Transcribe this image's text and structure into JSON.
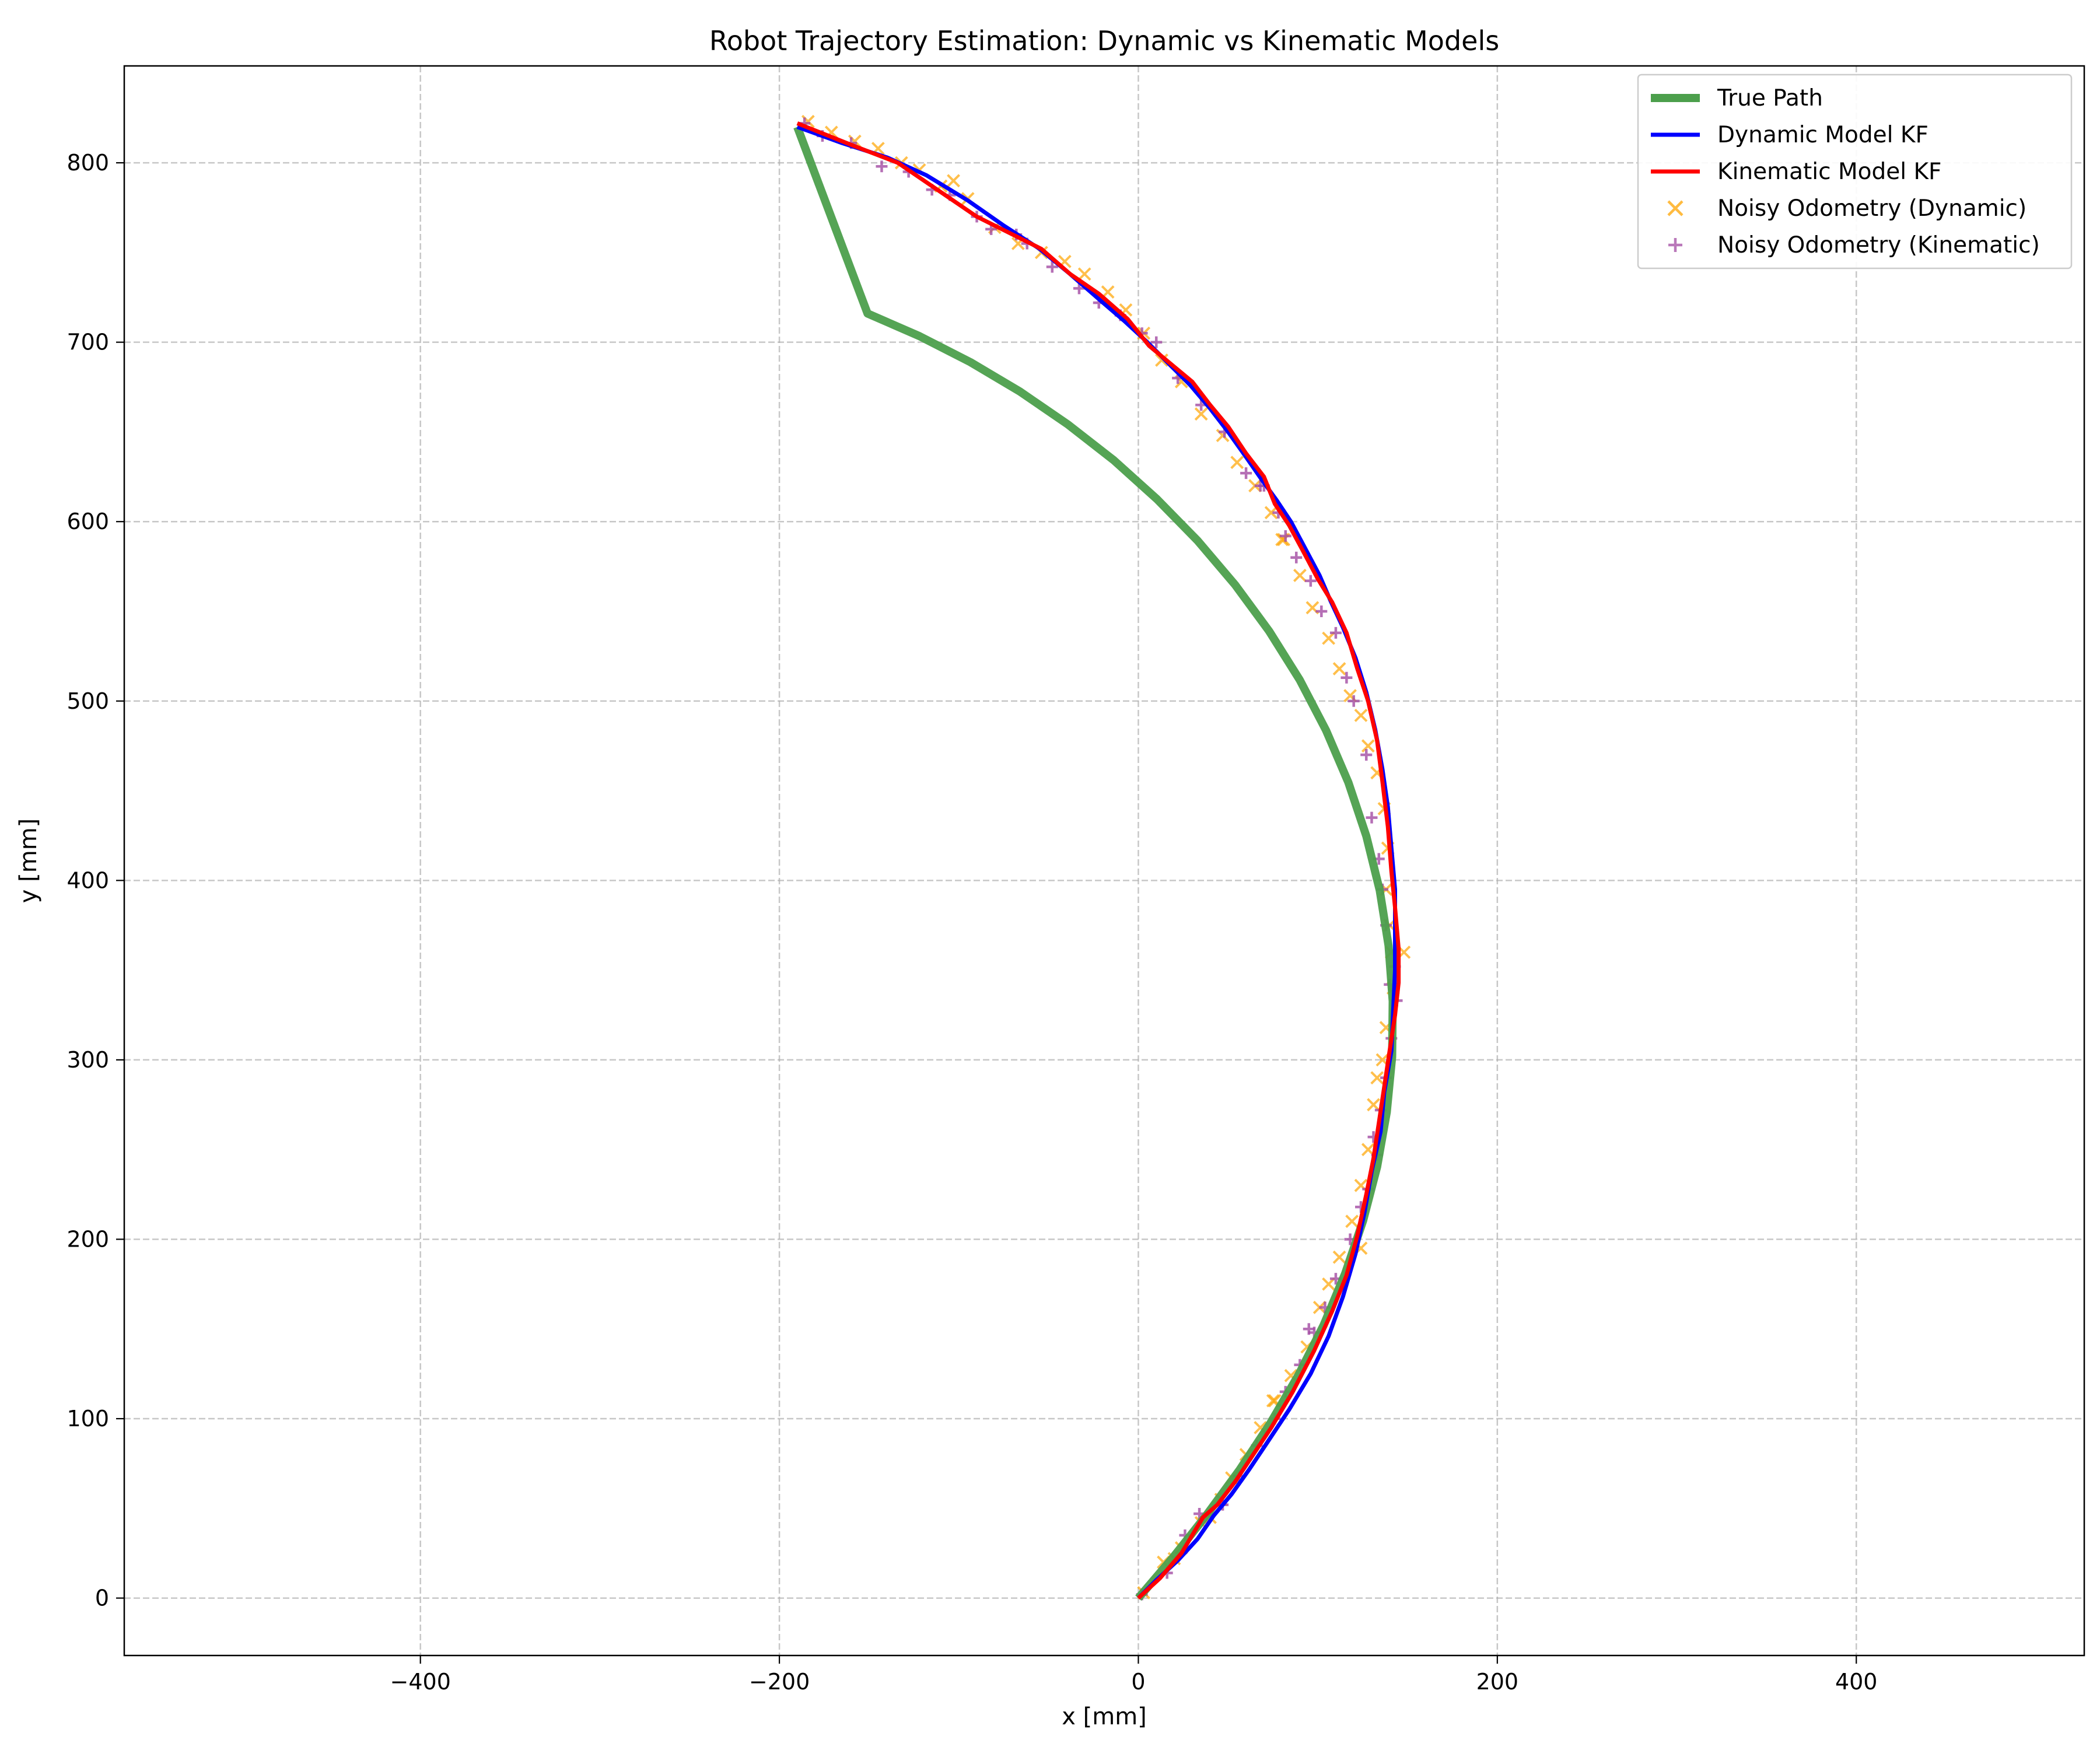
{
  "chart_data": {
    "type": "line",
    "title": "Robot Trajectory Estimation: Dynamic vs Kinematic Models",
    "xlabel": "x [mm]",
    "ylabel": "y [mm]",
    "xlim": [
      -565,
      527
    ],
    "ylim": [
      -32,
      854
    ],
    "xticks": [
      -400,
      -200,
      0,
      200,
      400
    ],
    "yticks": [
      0,
      100,
      200,
      300,
      400,
      500,
      600,
      700,
      800
    ],
    "grid": true,
    "legend_position": "top-right",
    "series": [
      {
        "name": "True Path",
        "kind": "line",
        "color": "#4c9f4c",
        "x": [
          0,
          19.4,
          38.3,
          56.4,
          73.5,
          89.2,
          103.2,
          115.2,
          125.2,
          133.0,
          138.4,
          141.4,
          141.7,
          139.4,
          134.5,
          127.0,
          117.0,
          104.6,
          89.9,
          72.9,
          53.9,
          33.0,
          10.3,
          -13.8,
          -39.3,
          -66.0,
          -93.6,
          -122.0,
          -150.9,
          -190.0
        ],
        "y": [
          0,
          22.8,
          46.7,
          71.5,
          97.4,
          124.3,
          152.1,
          180.8,
          210.3,
          240.3,
          270.8,
          301.6,
          332.6,
          363.6,
          394.4,
          424.8,
          454.6,
          483.6,
          511.8,
          538.9,
          564.8,
          589.4,
          612.6,
          634.3,
          654.2,
          672.5,
          688.9,
          703.4,
          716.0,
          820.0
        ]
      },
      {
        "name": "Dynamic Model KF",
        "kind": "line",
        "color": "#0000ff",
        "x": [
          0,
          10,
          22,
          33,
          42,
          52,
          62,
          72,
          84,
          96,
          106,
          114,
          121,
          126,
          130,
          135,
          137,
          141,
          142,
          143,
          143,
          143,
          141,
          139,
          136,
          132,
          127,
          121,
          114,
          107,
          101,
          93,
          85,
          77,
          69,
          60,
          50,
          40,
          29,
          18,
          5,
          -8,
          -22,
          -38,
          -55,
          -75,
          -95,
          -118,
          -140,
          -165,
          -190
        ],
        "y": [
          0,
          10,
          21,
          33,
          46,
          58,
          72,
          87,
          105,
          125,
          146,
          168,
          192,
          215,
          238,
          260,
          282,
          305,
          328,
          350,
          373,
          395,
          418,
          441,
          462,
          484,
          505,
          524,
          541,
          556,
          570,
          585,
          600,
          612,
          623,
          636,
          650,
          663,
          676,
          687,
          700,
          712,
          724,
          738,
          752,
          765,
          779,
          793,
          803,
          811,
          820
        ]
      },
      {
        "name": "Kinematic Model KF",
        "kind": "line",
        "color": "#ff0000",
        "x": [
          0,
          12,
          24,
          36,
          44,
          54,
          64,
          74,
          86,
          98,
          108,
          116,
          122,
          127,
          131,
          134,
          137,
          140,
          143,
          145,
          145,
          143,
          141,
          139,
          136,
          133,
          128,
          122,
          116,
          108,
          100,
          91,
          84,
          76,
          70,
          60,
          50,
          40,
          30,
          18,
          6,
          -6,
          -22,
          -38,
          -54,
          -70,
          -90,
          -112,
          -134,
          -160,
          -190
        ],
        "y": [
          0,
          11,
          25,
          45,
          52,
          65,
          80,
          95,
          115,
          138,
          160,
          180,
          202,
          225,
          245,
          265,
          285,
          305,
          325,
          343,
          362,
          385,
          405,
          430,
          455,
          478,
          500,
          518,
          538,
          555,
          568,
          585,
          598,
          610,
          625,
          638,
          653,
          665,
          678,
          688,
          698,
          713,
          727,
          738,
          752,
          760,
          770,
          785,
          800,
          810,
          822
        ]
      },
      {
        "name": "Noisy Odometry (Dynamic)",
        "kind": "scatter",
        "marker": "x",
        "color": "#ffa500",
        "x": [
          3,
          14,
          24,
          35,
          46,
          52,
          60,
          68,
          76,
          85,
          94,
          101,
          106,
          112,
          119,
          124,
          128,
          131,
          133,
          136,
          138,
          142,
          141,
          140,
          138,
          139,
          137,
          133,
          128,
          124,
          118,
          112,
          106,
          97,
          90,
          81,
          74,
          65,
          55,
          47,
          35,
          24,
          13,
          3,
          -7,
          -17,
          -30,
          -41,
          -54,
          -67,
          -80,
          -95,
          -103,
          -110,
          -122,
          -132,
          -145,
          -158,
          -171,
          -184,
          148,
          124,
          20,
          75,
          40,
          80
        ],
        "y": [
          3,
          20,
          28,
          42,
          55,
          67,
          80,
          95,
          110,
          124,
          140,
          162,
          175,
          190,
          210,
          230,
          250,
          275,
          290,
          300,
          318,
          340,
          360,
          375,
          395,
          418,
          440,
          460,
          475,
          492,
          503,
          518,
          535,
          552,
          570,
          590,
          605,
          620,
          633,
          648,
          660,
          678,
          690,
          705,
          718,
          728,
          738,
          745,
          750,
          755,
          764,
          780,
          790,
          787,
          796,
          800,
          808,
          812,
          817,
          823,
          360,
          195,
          22,
          110,
          45,
          590
        ]
      },
      {
        "name": "Noisy Odometry (Kinematic)",
        "kind": "scatter",
        "marker": "+",
        "color": "#a34ca3",
        "x": [
          2,
          16,
          26,
          34,
          47,
          56,
          66,
          76,
          82,
          90,
          98,
          104,
          110,
          118,
          124,
          128,
          133,
          131,
          135,
          138,
          141,
          144,
          140,
          143,
          138,
          136,
          134,
          130,
          127,
          120,
          116,
          110,
          102,
          96,
          88,
          82,
          78,
          70,
          60,
          48,
          35,
          22,
          10,
          2,
          -10,
          -22,
          -33,
          -48,
          -62,
          -68,
          -82,
          -90,
          -105,
          -115,
          -128,
          -143,
          -160,
          -176,
          -186,
          95,
          68
        ],
        "y": [
          2,
          14,
          35,
          47,
          52,
          68,
          85,
          100,
          115,
          130,
          148,
          162,
          178,
          200,
          218,
          228,
          247,
          257,
          272,
          290,
          312,
          333,
          342,
          352,
          375,
          395,
          412,
          435,
          470,
          500,
          513,
          538,
          550,
          567,
          580,
          592,
          605,
          620,
          627,
          650,
          665,
          680,
          700,
          705,
          715,
          722,
          730,
          742,
          755,
          760,
          763,
          770,
          782,
          785,
          795,
          798,
          811,
          815,
          822,
          150,
          620
        ]
      }
    ]
  }
}
